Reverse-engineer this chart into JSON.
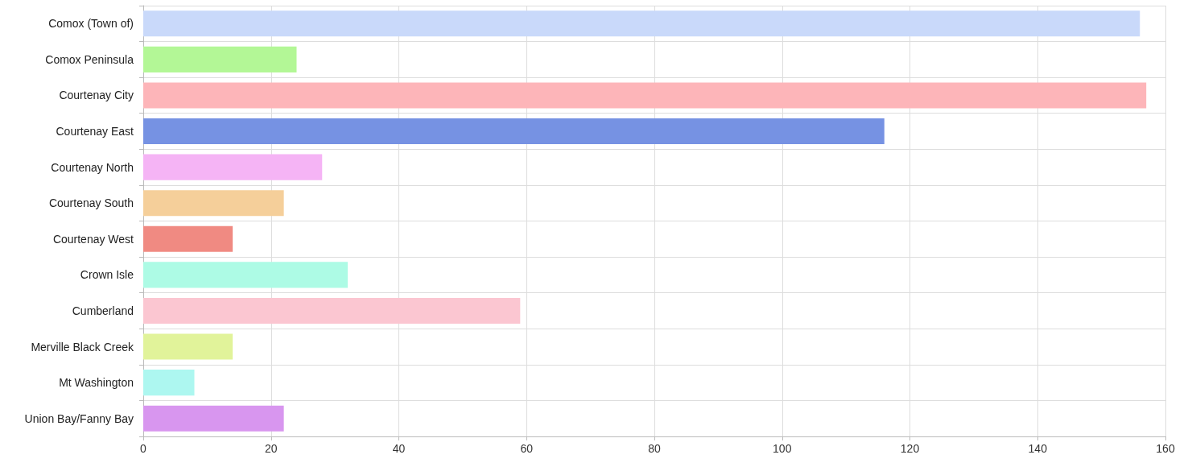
{
  "chart_data": {
    "type": "bar",
    "orientation": "horizontal",
    "categories": [
      "Comox (Town of)",
      "Comox Peninsula",
      "Courtenay City",
      "Courtenay East",
      "Courtenay North",
      "Courtenay South",
      "Courtenay West",
      "Crown Isle",
      "Cumberland",
      "Merville Black Creek",
      "Mt Washington",
      "Union Bay/Fanny Bay"
    ],
    "values": [
      156,
      24,
      157,
      116,
      28,
      22,
      14,
      32,
      59,
      14,
      8,
      22
    ],
    "colors": [
      "#c9d9fa",
      "#b3f796",
      "#fdb5b9",
      "#7692e3",
      "#f5b4f5",
      "#f5cf9a",
      "#f08a82",
      "#adfbe5",
      "#fbc6d1",
      "#e1f39a",
      "#adf7f0",
      "#d896ef"
    ],
    "xlim": [
      0,
      160
    ],
    "xticks": [
      0,
      20,
      40,
      60,
      80,
      100,
      120,
      140,
      160
    ],
    "grid": true
  }
}
